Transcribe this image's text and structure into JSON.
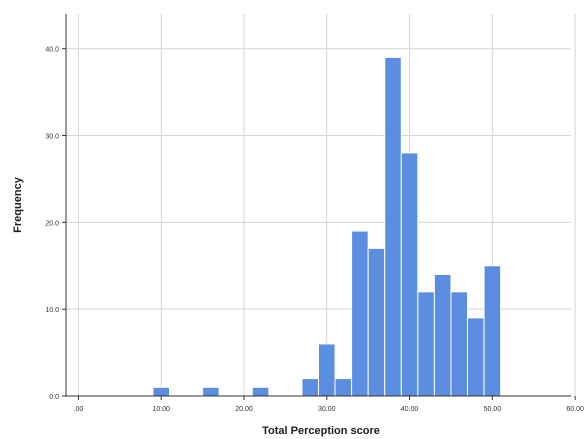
{
  "chart_data": {
    "type": "bar",
    "title": "",
    "xlabel": "Total Perception score",
    "ylabel": "Frequency",
    "xlim": [
      -1.5,
      59.5
    ],
    "ylim": [
      0,
      44
    ],
    "x_ticks": [
      0,
      10,
      20,
      30,
      40,
      50,
      60
    ],
    "x_tick_labels": [
      ".00",
      "10.00",
      "20.00",
      "30.00",
      "40.00",
      "50.00",
      "60.00"
    ],
    "y_ticks": [
      0,
      10,
      20,
      30,
      40
    ],
    "y_tick_labels": [
      "0.0",
      "10.0",
      "20.0",
      "30.0",
      "40.0"
    ],
    "grid": true,
    "bar_color": "#5b8de1",
    "bar_edge_color": "#ffffff",
    "bins": [
      {
        "x0": 9.0,
        "x1": 11.0,
        "value": 1
      },
      {
        "x0": 15.0,
        "x1": 17.0,
        "value": 1
      },
      {
        "x0": 21.0,
        "x1": 23.0,
        "value": 1
      },
      {
        "x0": 27.0,
        "x1": 29.0,
        "value": 2
      },
      {
        "x0": 29.0,
        "x1": 31.0,
        "value": 6
      },
      {
        "x0": 31.0,
        "x1": 33.0,
        "value": 2
      },
      {
        "x0": 33.0,
        "x1": 35.0,
        "value": 19
      },
      {
        "x0": 35.0,
        "x1": 37.0,
        "value": 17
      },
      {
        "x0": 37.0,
        "x1": 39.0,
        "value": 39
      },
      {
        "x0": 39.0,
        "x1": 41.0,
        "value": 28
      },
      {
        "x0": 41.0,
        "x1": 43.0,
        "value": 12
      },
      {
        "x0": 43.0,
        "x1": 45.0,
        "value": 14
      },
      {
        "x0": 45.0,
        "x1": 47.0,
        "value": 12
      },
      {
        "x0": 47.0,
        "x1": 49.0,
        "value": 9
      },
      {
        "x0": 49.0,
        "x1": 51.0,
        "value": 15
      }
    ]
  }
}
